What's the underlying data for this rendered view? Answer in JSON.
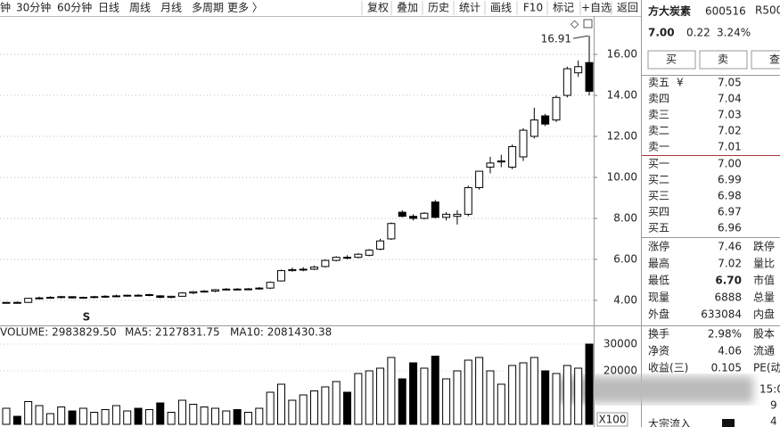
{
  "toolbar": {
    "left": [
      "钟",
      "30分钟",
      "60分钟",
      "日线",
      "周线",
      "月线",
      "多周期",
      "更多 〉"
    ],
    "right": [
      "复权",
      "叠加",
      "历史",
      "统计",
      "画线",
      "F10",
      "标记",
      "+自选",
      "返回"
    ]
  },
  "chart_data": [
    {
      "type": "candlestick",
      "open": [
        3.88,
        3.9,
        3.9,
        4.1,
        4.12,
        4.15,
        4.18,
        4.12,
        4.15,
        4.18,
        4.2,
        4.22,
        4.25,
        4.24,
        4.22,
        4.15,
        4.2,
        4.36,
        4.42,
        4.45,
        4.52,
        4.55,
        4.53,
        4.56,
        4.6,
        4.95,
        5.45,
        5.5,
        5.52,
        5.65,
        5.95,
        6.1,
        6.1,
        6.2,
        6.5,
        7.0,
        8.3,
        8.1,
        8.0,
        8.8,
        8.05,
        8.1,
        8.2,
        9.5,
        10.5,
        10.75,
        10.5,
        11.0,
        12.0,
        13.0,
        12.8,
        14.0,
        15.1,
        15.6
      ],
      "high": [
        3.92,
        3.95,
        4.12,
        4.18,
        4.2,
        4.22,
        4.2,
        4.18,
        4.22,
        4.25,
        4.28,
        4.28,
        4.3,
        4.32,
        4.25,
        4.22,
        4.4,
        4.45,
        4.5,
        4.55,
        4.6,
        4.6,
        4.6,
        4.65,
        4.92,
        5.5,
        5.6,
        5.62,
        5.7,
        6.0,
        6.15,
        6.2,
        6.3,
        6.5,
        7.0,
        7.8,
        8.4,
        8.2,
        8.3,
        8.9,
        8.3,
        8.4,
        9.6,
        10.3,
        11.0,
        11.1,
        11.6,
        12.4,
        13.4,
        13.1,
        14.0,
        15.4,
        15.7,
        16.91
      ],
      "low": [
        3.85,
        3.86,
        3.88,
        4.05,
        4.08,
        4.1,
        4.1,
        4.08,
        4.1,
        4.12,
        4.15,
        4.18,
        4.2,
        4.2,
        4.1,
        4.1,
        4.18,
        4.3,
        4.38,
        4.4,
        4.48,
        4.5,
        4.5,
        4.52,
        4.55,
        4.92,
        5.4,
        5.42,
        5.48,
        5.6,
        5.9,
        6.0,
        6.05,
        6.15,
        6.45,
        6.95,
        8.05,
        7.9,
        7.95,
        8.0,
        7.9,
        7.7,
        8.1,
        9.4,
        10.2,
        10.5,
        10.4,
        10.8,
        11.9,
        12.5,
        12.7,
        13.9,
        14.9,
        14.0
      ],
      "close": [
        3.9,
        3.88,
        4.1,
        4.12,
        4.15,
        4.18,
        4.12,
        4.15,
        4.18,
        4.2,
        4.22,
        4.25,
        4.24,
        4.28,
        4.15,
        4.2,
        4.36,
        4.42,
        4.45,
        4.52,
        4.55,
        4.53,
        4.56,
        4.6,
        4.88,
        5.45,
        5.5,
        5.52,
        5.62,
        5.95,
        6.1,
        6.08,
        6.25,
        6.45,
        6.9,
        7.75,
        8.1,
        8.0,
        8.25,
        8.05,
        8.2,
        8.2,
        9.5,
        10.3,
        10.7,
        10.8,
        11.5,
        12.3,
        12.8,
        12.6,
        13.9,
        15.3,
        15.4,
        14.2
      ],
      "ylim": [
        2.78,
        17.87
      ],
      "yticks": [
        {
          "value": 4,
          "label": "4.00"
        },
        {
          "value": 6,
          "label": "6.00"
        },
        {
          "value": 8,
          "label": "8.00"
        },
        {
          "value": 10,
          "label": "10.00"
        },
        {
          "value": 12,
          "label": "12.00"
        },
        {
          "value": 14,
          "label": "14.00"
        },
        {
          "value": 16,
          "label": "16.00"
        }
      ],
      "grid": true,
      "up_color": "#ffffff",
      "down_color": "#000000",
      "annotations": [
        "16.91",
        "S"
      ]
    },
    {
      "type": "bar",
      "legend": [
        "VOLUME: 2983829.50",
        "MA5: 2127831.75",
        "MA10: 2081430.38"
      ],
      "values": [
        6000,
        3000,
        8500,
        7000,
        4000,
        6500,
        5000,
        6000,
        4500,
        5500,
        7000,
        5000,
        6000,
        5500,
        8000,
        4500,
        9000,
        7500,
        6500,
        6000,
        5000,
        5500,
        4500,
        6000,
        12000,
        15000,
        9000,
        11000,
        12500,
        14000,
        16000,
        12000,
        19000,
        20000,
        21000,
        25000,
        17000,
        23000,
        21000,
        25500,
        17000,
        20000,
        24000,
        25000,
        20000,
        15000,
        22000,
        23000,
        25000,
        20000,
        19000,
        22000,
        21000,
        30000
      ],
      "ylim": [
        0,
        36000
      ],
      "yticks": [
        20000,
        30000
      ],
      "unit_label": "X100"
    }
  ],
  "quote": {
    "name": "方大炭素",
    "code": "600516",
    "badge": "R500",
    "price": "7.00",
    "change": "0.22",
    "percent": "3.24%",
    "buttons": [
      "买",
      "卖",
      "查"
    ],
    "currency": "¥",
    "sells": [
      [
        "卖五",
        "7.05"
      ],
      [
        "卖四",
        "7.04"
      ],
      [
        "卖三",
        "7.03"
      ],
      [
        "卖二",
        "7.02"
      ],
      [
        "卖一",
        "7.01"
      ]
    ],
    "buys": [
      [
        "买一",
        "7.00"
      ],
      [
        "买二",
        "6.99"
      ],
      [
        "买三",
        "6.98"
      ],
      [
        "买四",
        "6.97"
      ],
      [
        "买五",
        "6.96"
      ]
    ],
    "stats": [
      [
        "涨停",
        "7.46",
        "跌停"
      ],
      [
        "最高",
        "7.02",
        "量比"
      ],
      [
        "最低",
        "6.70",
        "市值"
      ],
      [
        "现量",
        "6888",
        "总量"
      ],
      [
        "外盘",
        "633084",
        "内盘"
      ]
    ],
    "stats2": [
      [
        "换手",
        "2.98%",
        "股本"
      ],
      [
        "净资",
        "4.06",
        "流通"
      ],
      [
        "收益(三)",
        "0.105",
        "PE(动"
      ]
    ],
    "time": "15:0",
    "side": [
      "9",
      "4"
    ],
    "flow": "大宗流入"
  }
}
